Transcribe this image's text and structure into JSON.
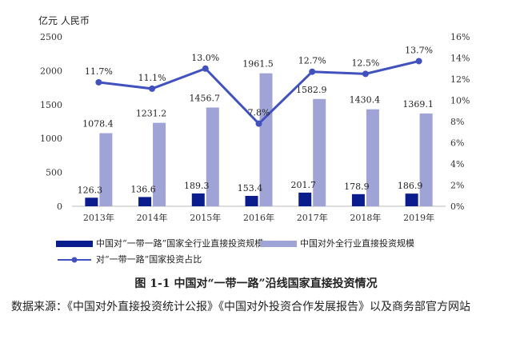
{
  "chart_data": {
    "type": "bar",
    "unit_label": "亿元 人民币",
    "categories": [
      "2013年",
      "2014年",
      "2015年",
      "2016年",
      "2017年",
      "2018年",
      "2019年"
    ],
    "y_left": {
      "min": 0,
      "max": 2500,
      "ticks": [
        "0",
        "500",
        "1000",
        "1500",
        "2000",
        "2500"
      ]
    },
    "y_right": {
      "min": 0,
      "max": 16,
      "ticks": [
        "0%",
        "2%",
        "4%",
        "6%",
        "8%",
        "10%",
        "12%",
        "14%",
        "16%"
      ]
    },
    "series": [
      {
        "name": "中国对“一带一路”国家全行业直接投资规模",
        "type": "bar",
        "color": "#0b1d8c",
        "values": [
          126.3,
          136.6,
          189.3,
          153.4,
          201.7,
          178.9,
          186.9
        ],
        "labels": [
          "126.3",
          "136.6",
          "189.3",
          "153.4",
          "201.7",
          "178.9",
          "186.9"
        ]
      },
      {
        "name": "中国对外全行业直接投资规模",
        "type": "bar",
        "color": "#9fa3d6",
        "values": [
          1078.4,
          1231.2,
          1456.7,
          1961.5,
          1582.9,
          1430.4,
          1369.1
        ],
        "labels": [
          "1078.4",
          "1231.2",
          "1456.7",
          "1961.5",
          "1582.9",
          "1430.4",
          "1369.1"
        ]
      },
      {
        "name": "对“一带一路”国家投资占比",
        "type": "line",
        "axis": "right",
        "color": "#4152bf",
        "values": [
          11.7,
          11.1,
          13.0,
          7.8,
          12.7,
          12.5,
          13.7
        ],
        "labels": [
          "11.7%",
          "11.1%",
          "13.0%",
          "7.8%",
          "12.7%",
          "12.5%",
          "13.7%"
        ]
      }
    ],
    "grid": false,
    "legend_position": "bottom"
  },
  "caption": "图 1-1 中国对“一带一路”沿线国家直接投资情况",
  "source": "数据来源：《中国对外直接投资统计公报》《中国对外投资合作发展报告》以及商务部官方网站"
}
